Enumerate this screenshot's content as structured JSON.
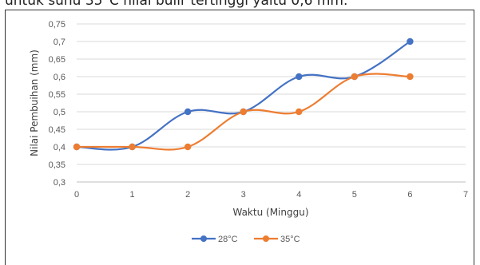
{
  "caption": "untuk suhu 35°C nilai bulir tertinggi yaitu 0,6 mm.",
  "chart_data": {
    "type": "line",
    "title": "",
    "xlabel": "Waktu (Minggu)",
    "ylabel": "Nilai Pembuihan (mm)",
    "xlim": [
      0,
      7
    ],
    "ylim": [
      0.3,
      0.75
    ],
    "x_ticks": [
      "0",
      "1",
      "2",
      "3",
      "4",
      "5",
      "6",
      "7"
    ],
    "y_ticks": [
      "0,3",
      "0,35",
      "0,4",
      "0,45",
      "0,5",
      "0,55",
      "0,6",
      "0,65",
      "0,7",
      "0,75"
    ],
    "grid": "horizontal",
    "legend_position": "bottom",
    "series": [
      {
        "name": "28°C",
        "color": "#4472C4",
        "x": [
          0,
          1,
          2,
          3,
          4,
          5,
          6
        ],
        "values": [
          0.4,
          0.4,
          0.5,
          0.5,
          0.6,
          0.6,
          0.7
        ]
      },
      {
        "name": "35°C",
        "color": "#ED7D31",
        "x": [
          0,
          1,
          2,
          3,
          4,
          5,
          6
        ],
        "values": [
          0.4,
          0.4,
          0.4,
          0.5,
          0.5,
          0.6,
          0.6
        ]
      }
    ]
  }
}
